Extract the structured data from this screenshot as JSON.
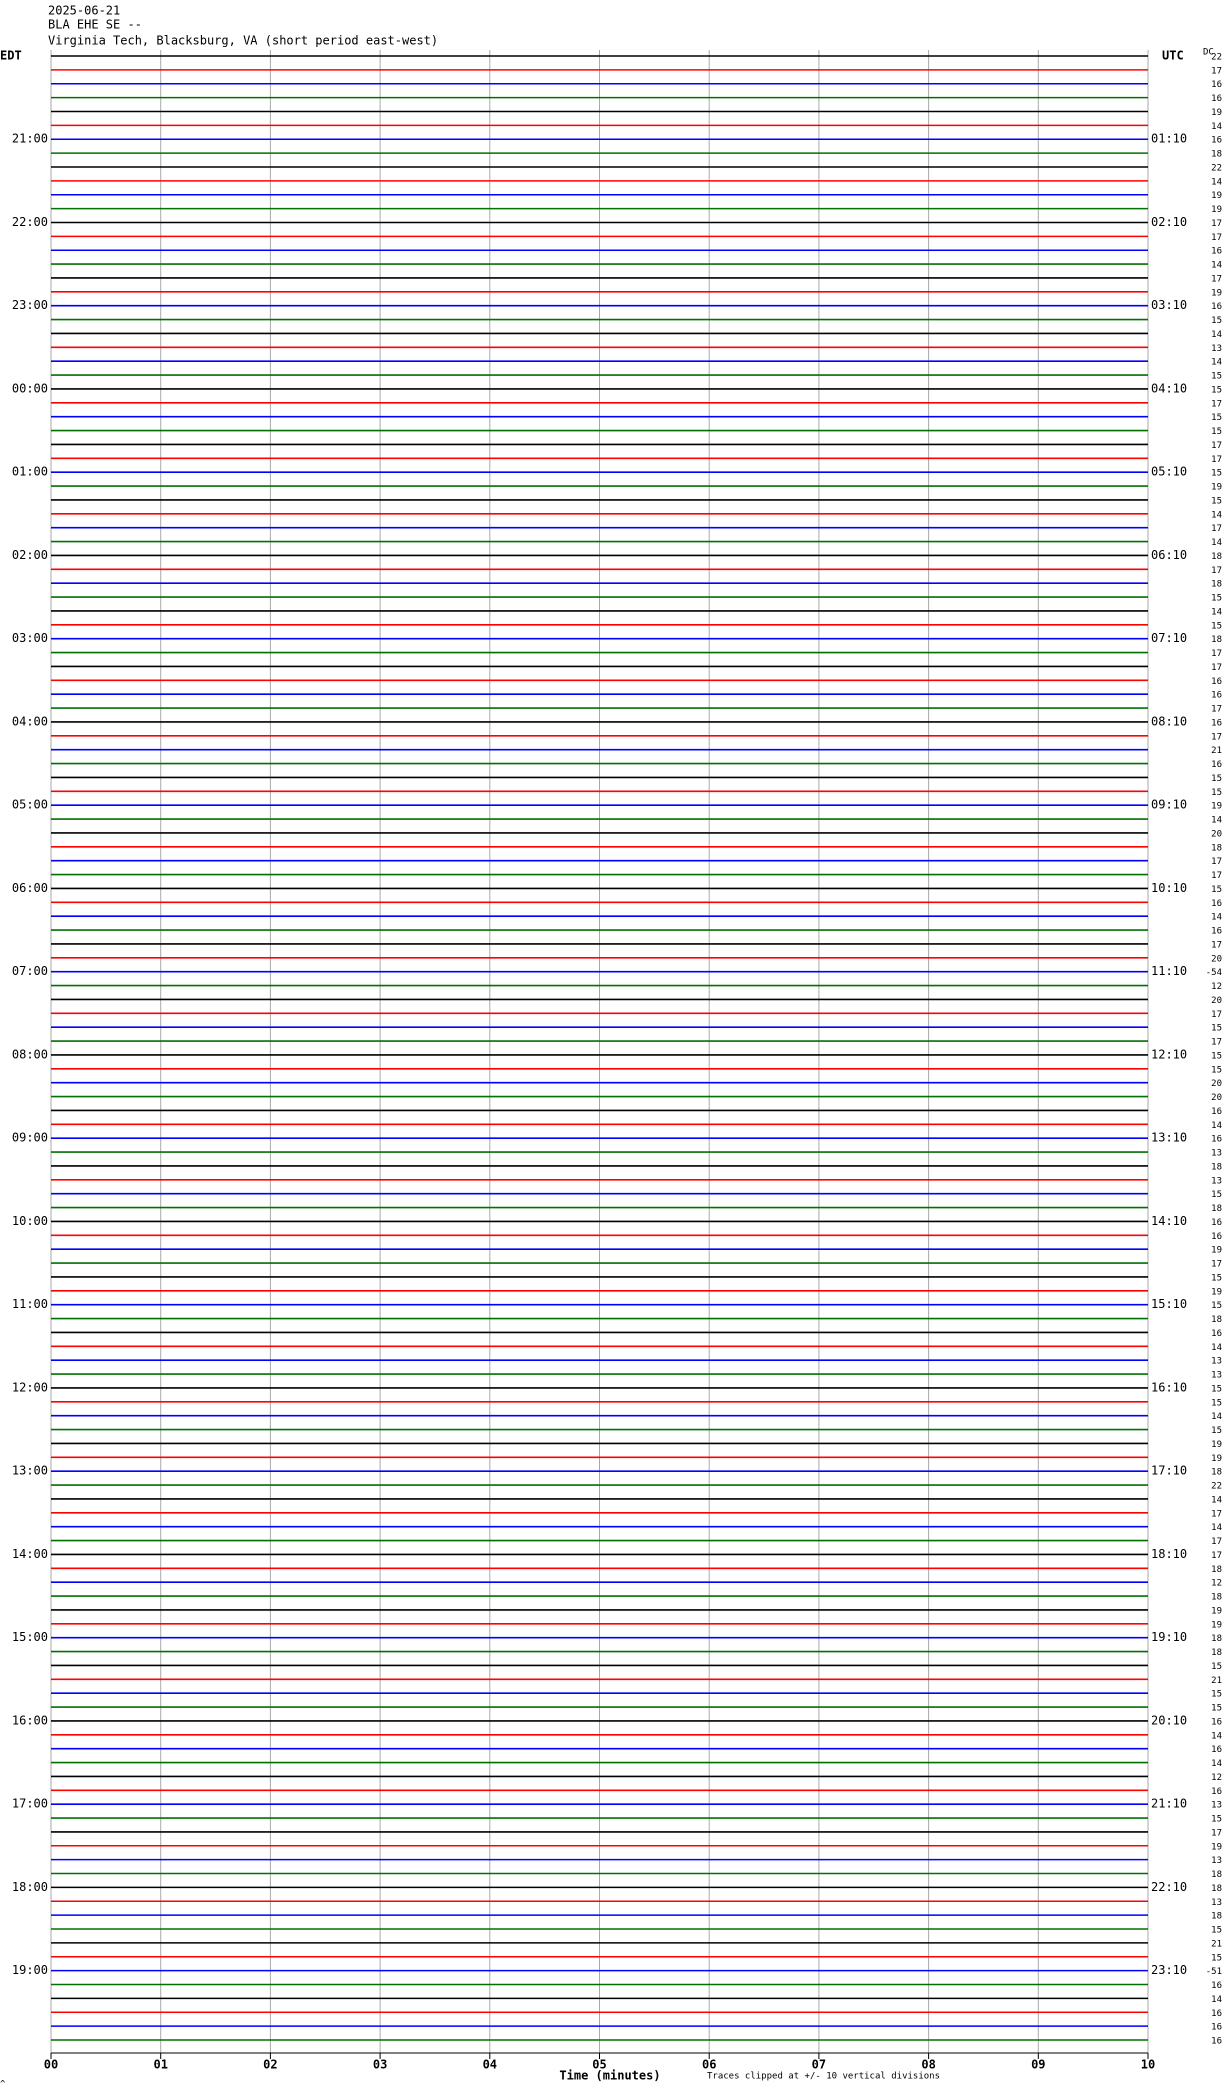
{
  "chart_data": {
    "type": "seismogram",
    "title_lines": [
      "2025-06-21",
      "BLA EHE SE --",
      "Virginia Tech, Blacksburg, VA (short period east-west)"
    ],
    "left_header": "EDT",
    "right_header": "UTC",
    "offset_header": "DC",
    "left_labels": [
      "21:00",
      "22:00",
      "23:00",
      "00:00",
      "01:00",
      "02:00",
      "03:00",
      "04:00",
      "05:00",
      "06:00",
      "07:00",
      "08:00",
      "09:00",
      "10:00",
      "11:00",
      "12:00",
      "13:00",
      "14:00",
      "15:00",
      "16:00",
      "17:00",
      "18:00",
      "19:00"
    ],
    "right_labels": [
      "01:10",
      "02:10",
      "03:10",
      "04:10",
      "05:10",
      "06:10",
      "07:10",
      "08:10",
      "09:10",
      "10:10",
      "11:10",
      "12:10",
      "13:10",
      "14:10",
      "15:10",
      "16:10",
      "17:10",
      "18:10",
      "19:10",
      "20:10",
      "21:10",
      "22:10",
      "23:10"
    ],
    "dc_offsets": [
      22,
      17,
      16,
      16,
      19,
      14,
      16,
      18,
      22,
      14,
      19,
      19,
      17,
      17,
      16,
      14,
      17,
      19,
      16,
      15,
      14,
      13,
      14,
      15,
      15,
      17,
      15,
      15,
      17,
      17,
      15,
      19,
      15,
      14,
      17,
      14,
      18,
      17,
      18,
      15,
      14,
      15,
      18,
      17,
      17,
      16,
      16,
      17,
      16,
      17,
      21,
      16,
      15,
      15,
      19,
      14,
      20,
      18,
      17,
      17,
      15,
      16,
      14,
      16,
      17,
      20,
      -54,
      12,
      20,
      17,
      15,
      17,
      15,
      15,
      20,
      20,
      16,
      14,
      16,
      13,
      18,
      13,
      15,
      18,
      16,
      16,
      19,
      17,
      15,
      19,
      15,
      18,
      16,
      14,
      13,
      13,
      15,
      15,
      14,
      15,
      19,
      19,
      18,
      22,
      14,
      17,
      14,
      17,
      17,
      18,
      12,
      18,
      19,
      19,
      18,
      18,
      15,
      21,
      15,
      15,
      16,
      14,
      16,
      14,
      12,
      16,
      13,
      15,
      17,
      19,
      13,
      18,
      18,
      13,
      18,
      15,
      21,
      15,
      -51,
      16,
      14,
      16,
      16,
      16
    ],
    "trace_colors": [
      "#000000",
      "#ff0000",
      "#0000ff",
      "#007000"
    ],
    "xlim": [
      0,
      10
    ],
    "xticks": [
      {
        "value": 0,
        "label": "00"
      },
      {
        "value": 1,
        "label": "01"
      },
      {
        "value": 2,
        "label": "02"
      },
      {
        "value": 3,
        "label": "03"
      },
      {
        "value": 4,
        "label": "04"
      },
      {
        "value": 5,
        "label": "05"
      },
      {
        "value": 6,
        "label": "06"
      },
      {
        "value": 7,
        "label": "07"
      },
      {
        "value": 8,
        "label": "08"
      },
      {
        "value": 9,
        "label": "09"
      },
      {
        "value": 10,
        "label": "10"
      }
    ],
    "x_label": "Time (minutes)",
    "note": "Traces clipped at +/- 10 vertical divisions",
    "corner_mark": "^",
    "grid": true
  }
}
